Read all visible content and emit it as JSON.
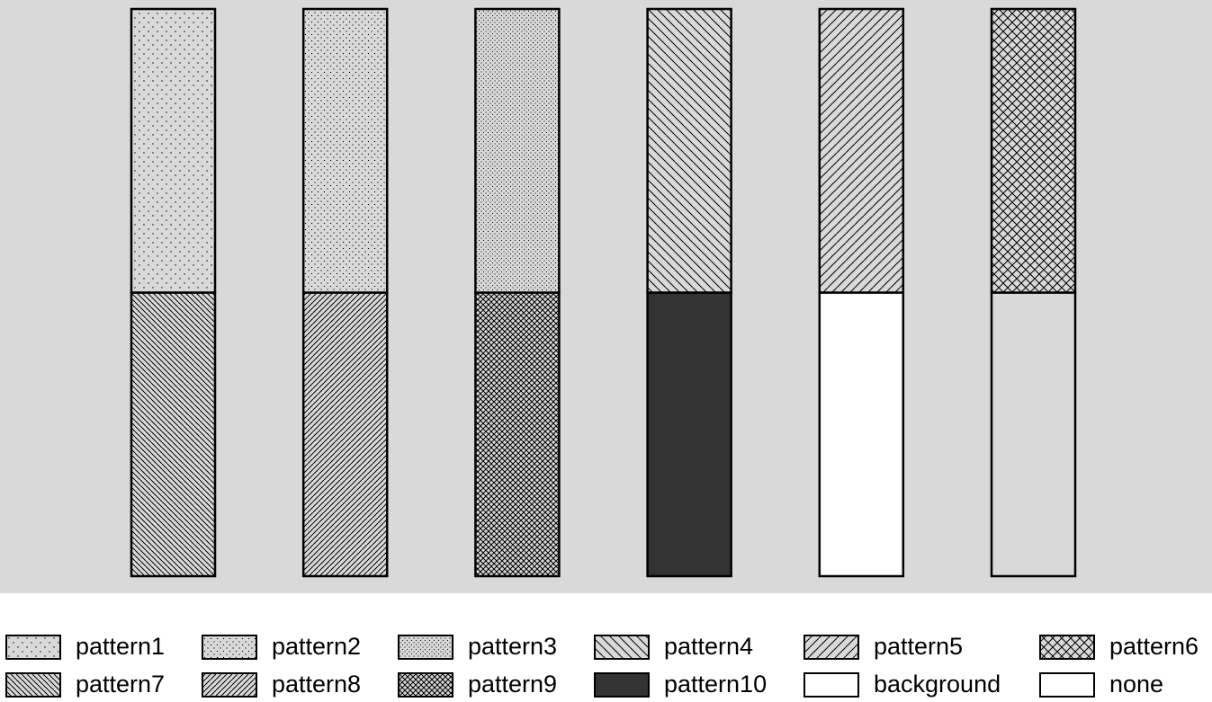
{
  "chart_data": {
    "type": "bar",
    "stacked": true,
    "categories": [
      "",
      "",
      "",
      "",
      "",
      ""
    ],
    "ylim": [
      0,
      2
    ],
    "grid": false,
    "panel_background": "#d9d9d9",
    "legend_placement": "bottom",
    "series": [
      {
        "values": [
          1,
          1,
          1,
          1,
          1,
          1
        ],
        "patterns": [
          "pattern7",
          "pattern8",
          "pattern9",
          "pattern10",
          "background",
          "none"
        ]
      },
      {
        "values": [
          1,
          1,
          1,
          1,
          1,
          1
        ],
        "patterns": [
          "pattern1",
          "pattern2",
          "pattern3",
          "pattern4",
          "pattern5",
          "pattern6"
        ]
      }
    ],
    "legend": [
      {
        "label": "pattern1",
        "pattern": "pattern1"
      },
      {
        "label": "pattern2",
        "pattern": "pattern2"
      },
      {
        "label": "pattern3",
        "pattern": "pattern3"
      },
      {
        "label": "pattern4",
        "pattern": "pattern4"
      },
      {
        "label": "pattern5",
        "pattern": "pattern5"
      },
      {
        "label": "pattern6",
        "pattern": "pattern6"
      },
      {
        "label": "pattern7",
        "pattern": "pattern7"
      },
      {
        "label": "pattern8",
        "pattern": "pattern8"
      },
      {
        "label": "pattern9",
        "pattern": "pattern9"
      },
      {
        "label": "pattern10",
        "pattern": "pattern10"
      },
      {
        "label": "background",
        "pattern": "background"
      },
      {
        "label": "none",
        "pattern": "none"
      }
    ],
    "colors": {
      "panel": "#d9d9d9",
      "stroke": "#000000",
      "pattern10": "#333333",
      "background": "#ffffff",
      "pattern_base": "#d9d9d9"
    }
  }
}
